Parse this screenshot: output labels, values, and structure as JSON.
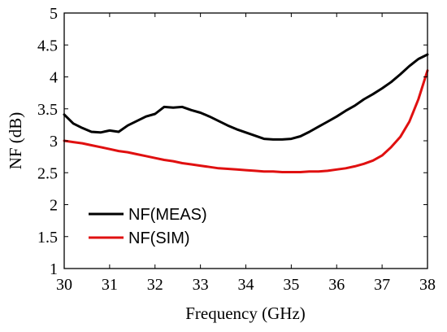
{
  "chart_data": {
    "type": "line",
    "title": "",
    "xlabel": "Frequency (GHz)",
    "ylabel": "NF (dB)",
    "xlim": [
      30,
      38
    ],
    "ylim": [
      1,
      5
    ],
    "xticks": [
      30,
      31,
      32,
      33,
      34,
      35,
      36,
      37,
      38
    ],
    "yticks": [
      1,
      1.5,
      2,
      2.5,
      3,
      3.5,
      4,
      4.5,
      5
    ],
    "grid": false,
    "legend_position": "bottom-left",
    "series": [
      {
        "name": "NF(MEAS)",
        "color": "#000000",
        "x": [
          30.0,
          30.2,
          30.4,
          30.6,
          30.8,
          31.0,
          31.2,
          31.4,
          31.6,
          31.8,
          32.0,
          32.2,
          32.4,
          32.6,
          32.8,
          33.0,
          33.2,
          33.4,
          33.6,
          33.8,
          34.0,
          34.2,
          34.4,
          34.6,
          34.8,
          35.0,
          35.2,
          35.4,
          35.6,
          35.8,
          36.0,
          36.2,
          36.4,
          36.6,
          36.8,
          37.0,
          37.2,
          37.4,
          37.6,
          37.8,
          38.0
        ],
        "y": [
          3.41,
          3.27,
          3.2,
          3.14,
          3.13,
          3.16,
          3.14,
          3.24,
          3.31,
          3.38,
          3.42,
          3.53,
          3.52,
          3.53,
          3.48,
          3.44,
          3.38,
          3.31,
          3.24,
          3.18,
          3.13,
          3.08,
          3.03,
          3.02,
          3.02,
          3.03,
          3.07,
          3.14,
          3.22,
          3.3,
          3.38,
          3.47,
          3.55,
          3.65,
          3.73,
          3.82,
          3.92,
          4.04,
          4.17,
          4.28,
          4.35
        ]
      },
      {
        "name": "NF(SIM)",
        "color": "#e01010",
        "x": [
          30.0,
          30.2,
          30.4,
          30.6,
          30.8,
          31.0,
          31.2,
          31.4,
          31.6,
          31.8,
          32.0,
          32.2,
          32.4,
          32.6,
          32.8,
          33.0,
          33.2,
          33.4,
          33.6,
          33.8,
          34.0,
          34.2,
          34.4,
          34.6,
          34.8,
          35.0,
          35.2,
          35.4,
          35.6,
          35.8,
          36.0,
          36.2,
          36.4,
          36.6,
          36.8,
          37.0,
          37.2,
          37.4,
          37.6,
          37.8,
          38.0
        ],
        "y": [
          3.0,
          2.98,
          2.96,
          2.93,
          2.9,
          2.87,
          2.84,
          2.82,
          2.79,
          2.76,
          2.73,
          2.7,
          2.68,
          2.65,
          2.63,
          2.61,
          2.59,
          2.57,
          2.56,
          2.55,
          2.54,
          2.53,
          2.52,
          2.52,
          2.51,
          2.51,
          2.51,
          2.52,
          2.52,
          2.53,
          2.55,
          2.57,
          2.6,
          2.64,
          2.69,
          2.77,
          2.9,
          3.06,
          3.3,
          3.65,
          4.1
        ]
      }
    ]
  }
}
